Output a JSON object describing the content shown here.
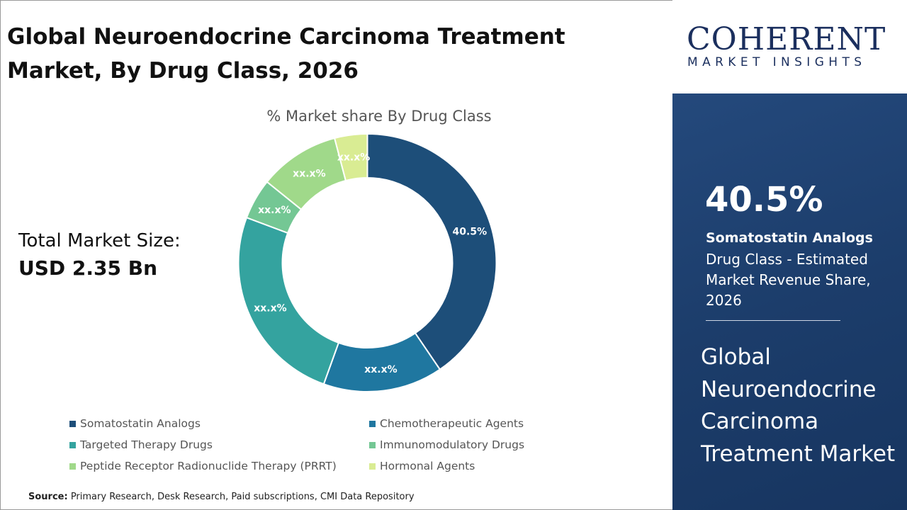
{
  "header": {
    "title": "Global Neuroendocrine Carcinoma Treatment Market, By Drug Class, 2026"
  },
  "total": {
    "label": "Total Market Size:",
    "value": "USD 2.35 Bn"
  },
  "logo": {
    "main": "COHERENT",
    "sub": "MARKET INSIGHTS"
  },
  "side": {
    "big": "40.5%",
    "segment": "Somatostatin Analogs",
    "desc": "Drug Class - Estimated Market Revenue Share, 2026",
    "title": "Global Neuroendocrine Carcinoma Treatment Market"
  },
  "source": {
    "label": "Source:",
    "text": " Primary Research, Desk Research, Paid subscriptions, CMI Data Repository"
  },
  "chart_data": {
    "type": "pie",
    "donut": true,
    "title": "% Market share By Drug Class",
    "categories": [
      "Somatostatin Analogs",
      "Chemotherapeutic Agents",
      "Targeted Therapy Drugs",
      "Immunomodulatory Drugs",
      "Peptide Receptor Radionuclide Therapy (PRRT)",
      "Hormonal Agents"
    ],
    "values": [
      40.5,
      15.0,
      25.2,
      5.1,
      10.1,
      4.1
    ],
    "data_labels": [
      "40.5%",
      "xx.x%",
      "xx.x%",
      "xx.x%",
      "xx.x%",
      "xx.x%"
    ],
    "colors": [
      "#1d4e79",
      "#1f77a0",
      "#34a39f",
      "#74c794",
      "#a0d98a",
      "#d9ec93"
    ],
    "legend_position": "bottom"
  }
}
